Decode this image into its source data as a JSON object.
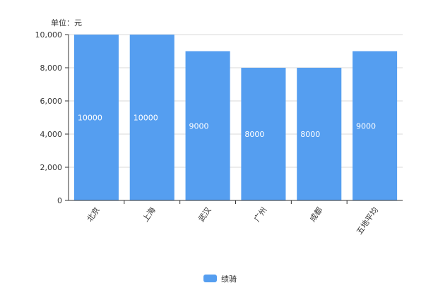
{
  "chart_data": {
    "type": "bar",
    "unit_label": "单位：元",
    "categories": [
      "北京",
      "上海",
      "武汉",
      "广州",
      "成都",
      "五地平均"
    ],
    "series": [
      {
        "name": "绩骑",
        "values": [
          10000,
          10000,
          9000,
          8000,
          8000,
          9000
        ]
      }
    ],
    "ylim": [
      0,
      10000
    ],
    "y_ticks": [
      0,
      2000,
      4000,
      6000,
      8000,
      10000
    ],
    "y_tick_labels": [
      "0",
      "2,000",
      "4,000",
      "6,000",
      "8,000",
      "10,000"
    ],
    "data_labels": [
      "10000",
      "10000",
      "9000",
      "8000",
      "8000",
      "9000"
    ],
    "grid": true,
    "legend": "bottom-center",
    "bar_color": "#559ef0",
    "axis_color": "#333333",
    "grid_color": "#d9d9d9",
    "text_color": "#333333",
    "label_color": "#ffffff"
  }
}
